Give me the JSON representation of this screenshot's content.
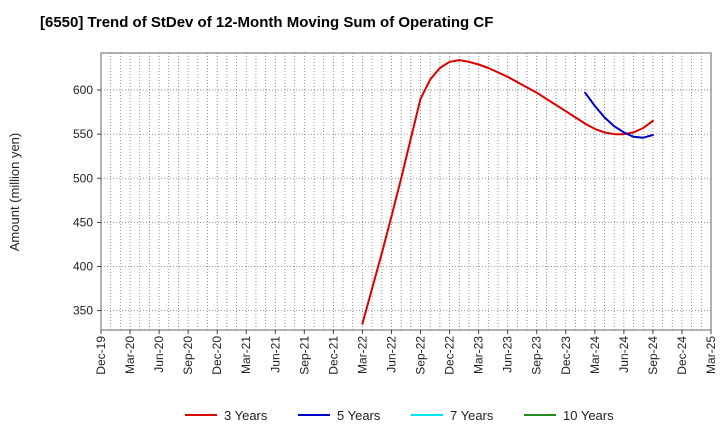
{
  "chart_data": {
    "type": "line",
    "title": "[6550]  Trend of StDev of 12-Month Moving Sum of Operating CF",
    "xlabel": "",
    "ylabel": "Amount (million yen)",
    "ylim": [
      328,
      642
    ],
    "yticks": [
      350,
      400,
      450,
      500,
      550,
      600
    ],
    "xticks": [
      "Dec-19",
      "Mar-20",
      "Jun-20",
      "Sep-20",
      "Dec-20",
      "Mar-21",
      "Jun-21",
      "Sep-21",
      "Dec-21",
      "Mar-22",
      "Jun-22",
      "Sep-22",
      "Dec-22",
      "Mar-23",
      "Jun-23",
      "Sep-23",
      "Dec-23",
      "Mar-24",
      "Jun-24",
      "Sep-24",
      "Dec-24",
      "Mar-25"
    ],
    "grid": true,
    "legend_position": "bottom",
    "series": [
      {
        "name": "3 Years",
        "color": "#dd0000",
        "points": [
          [
            "Mar-22",
            335
          ],
          [
            "Apr-22",
            375
          ],
          [
            "May-22",
            415
          ],
          [
            "Jun-22",
            457
          ],
          [
            "Jul-22",
            500
          ],
          [
            "Aug-22",
            545
          ],
          [
            "Sep-22",
            590
          ],
          [
            "Oct-22",
            612
          ],
          [
            "Nov-22",
            625
          ],
          [
            "Dec-22",
            632
          ],
          [
            "Jan-23",
            634
          ],
          [
            "Feb-23",
            632
          ],
          [
            "Mar-23",
            629
          ],
          [
            "Apr-23",
            625
          ],
          [
            "May-23",
            620
          ],
          [
            "Jun-23",
            615
          ],
          [
            "Jul-23",
            609
          ],
          [
            "Aug-23",
            603
          ],
          [
            "Sep-23",
            597
          ],
          [
            "Oct-23",
            590
          ],
          [
            "Nov-23",
            583
          ],
          [
            "Dec-23",
            576
          ],
          [
            "Jan-24",
            569
          ],
          [
            "Feb-24",
            562
          ],
          [
            "Mar-24",
            556
          ],
          [
            "Apr-24",
            552
          ],
          [
            "May-24",
            550
          ],
          [
            "Jun-24",
            550
          ],
          [
            "Jul-24",
            552
          ],
          [
            "Aug-24",
            557
          ],
          [
            "Sep-24",
            565
          ]
        ]
      },
      {
        "name": "5 Years",
        "color": "#0000cc",
        "points": [
          [
            "Feb-24",
            597
          ],
          [
            "Mar-24",
            582
          ],
          [
            "Apr-24",
            569
          ],
          [
            "May-24",
            559
          ],
          [
            "Jun-24",
            552
          ],
          [
            "Jul-24",
            547
          ],
          [
            "Aug-24",
            546
          ],
          [
            "Sep-24",
            549
          ]
        ]
      },
      {
        "name": "7 Years",
        "color": "#00e5ee",
        "points": []
      },
      {
        "name": "10 Years",
        "color": "#228b22",
        "points": []
      }
    ]
  }
}
